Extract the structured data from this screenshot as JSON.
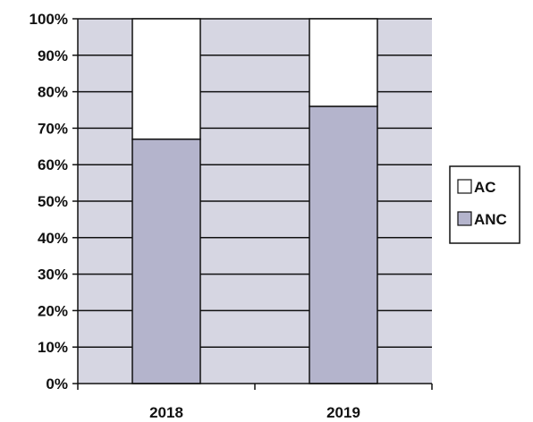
{
  "chart_data": {
    "type": "bar",
    "stacked": true,
    "normalized": true,
    "categories": [
      "2018",
      "2019"
    ],
    "series": [
      {
        "name": "ANC",
        "values": [
          67,
          76
        ]
      },
      {
        "name": "AC",
        "values": [
          33,
          24
        ]
      }
    ],
    "ylim": [
      0,
      100
    ],
    "y_ticks": [
      "0%",
      "10%",
      "20%",
      "30%",
      "40%",
      "50%",
      "60%",
      "70%",
      "80%",
      "90%",
      "100%"
    ],
    "grid": true,
    "legend": {
      "position": "right",
      "entries": [
        "AC",
        "ANC"
      ]
    },
    "colors": {
      "plot_background": "#d6d6e2",
      "AC": "#ffffff",
      "ANC": "#b4b4cc",
      "lines": "#111111"
    }
  }
}
